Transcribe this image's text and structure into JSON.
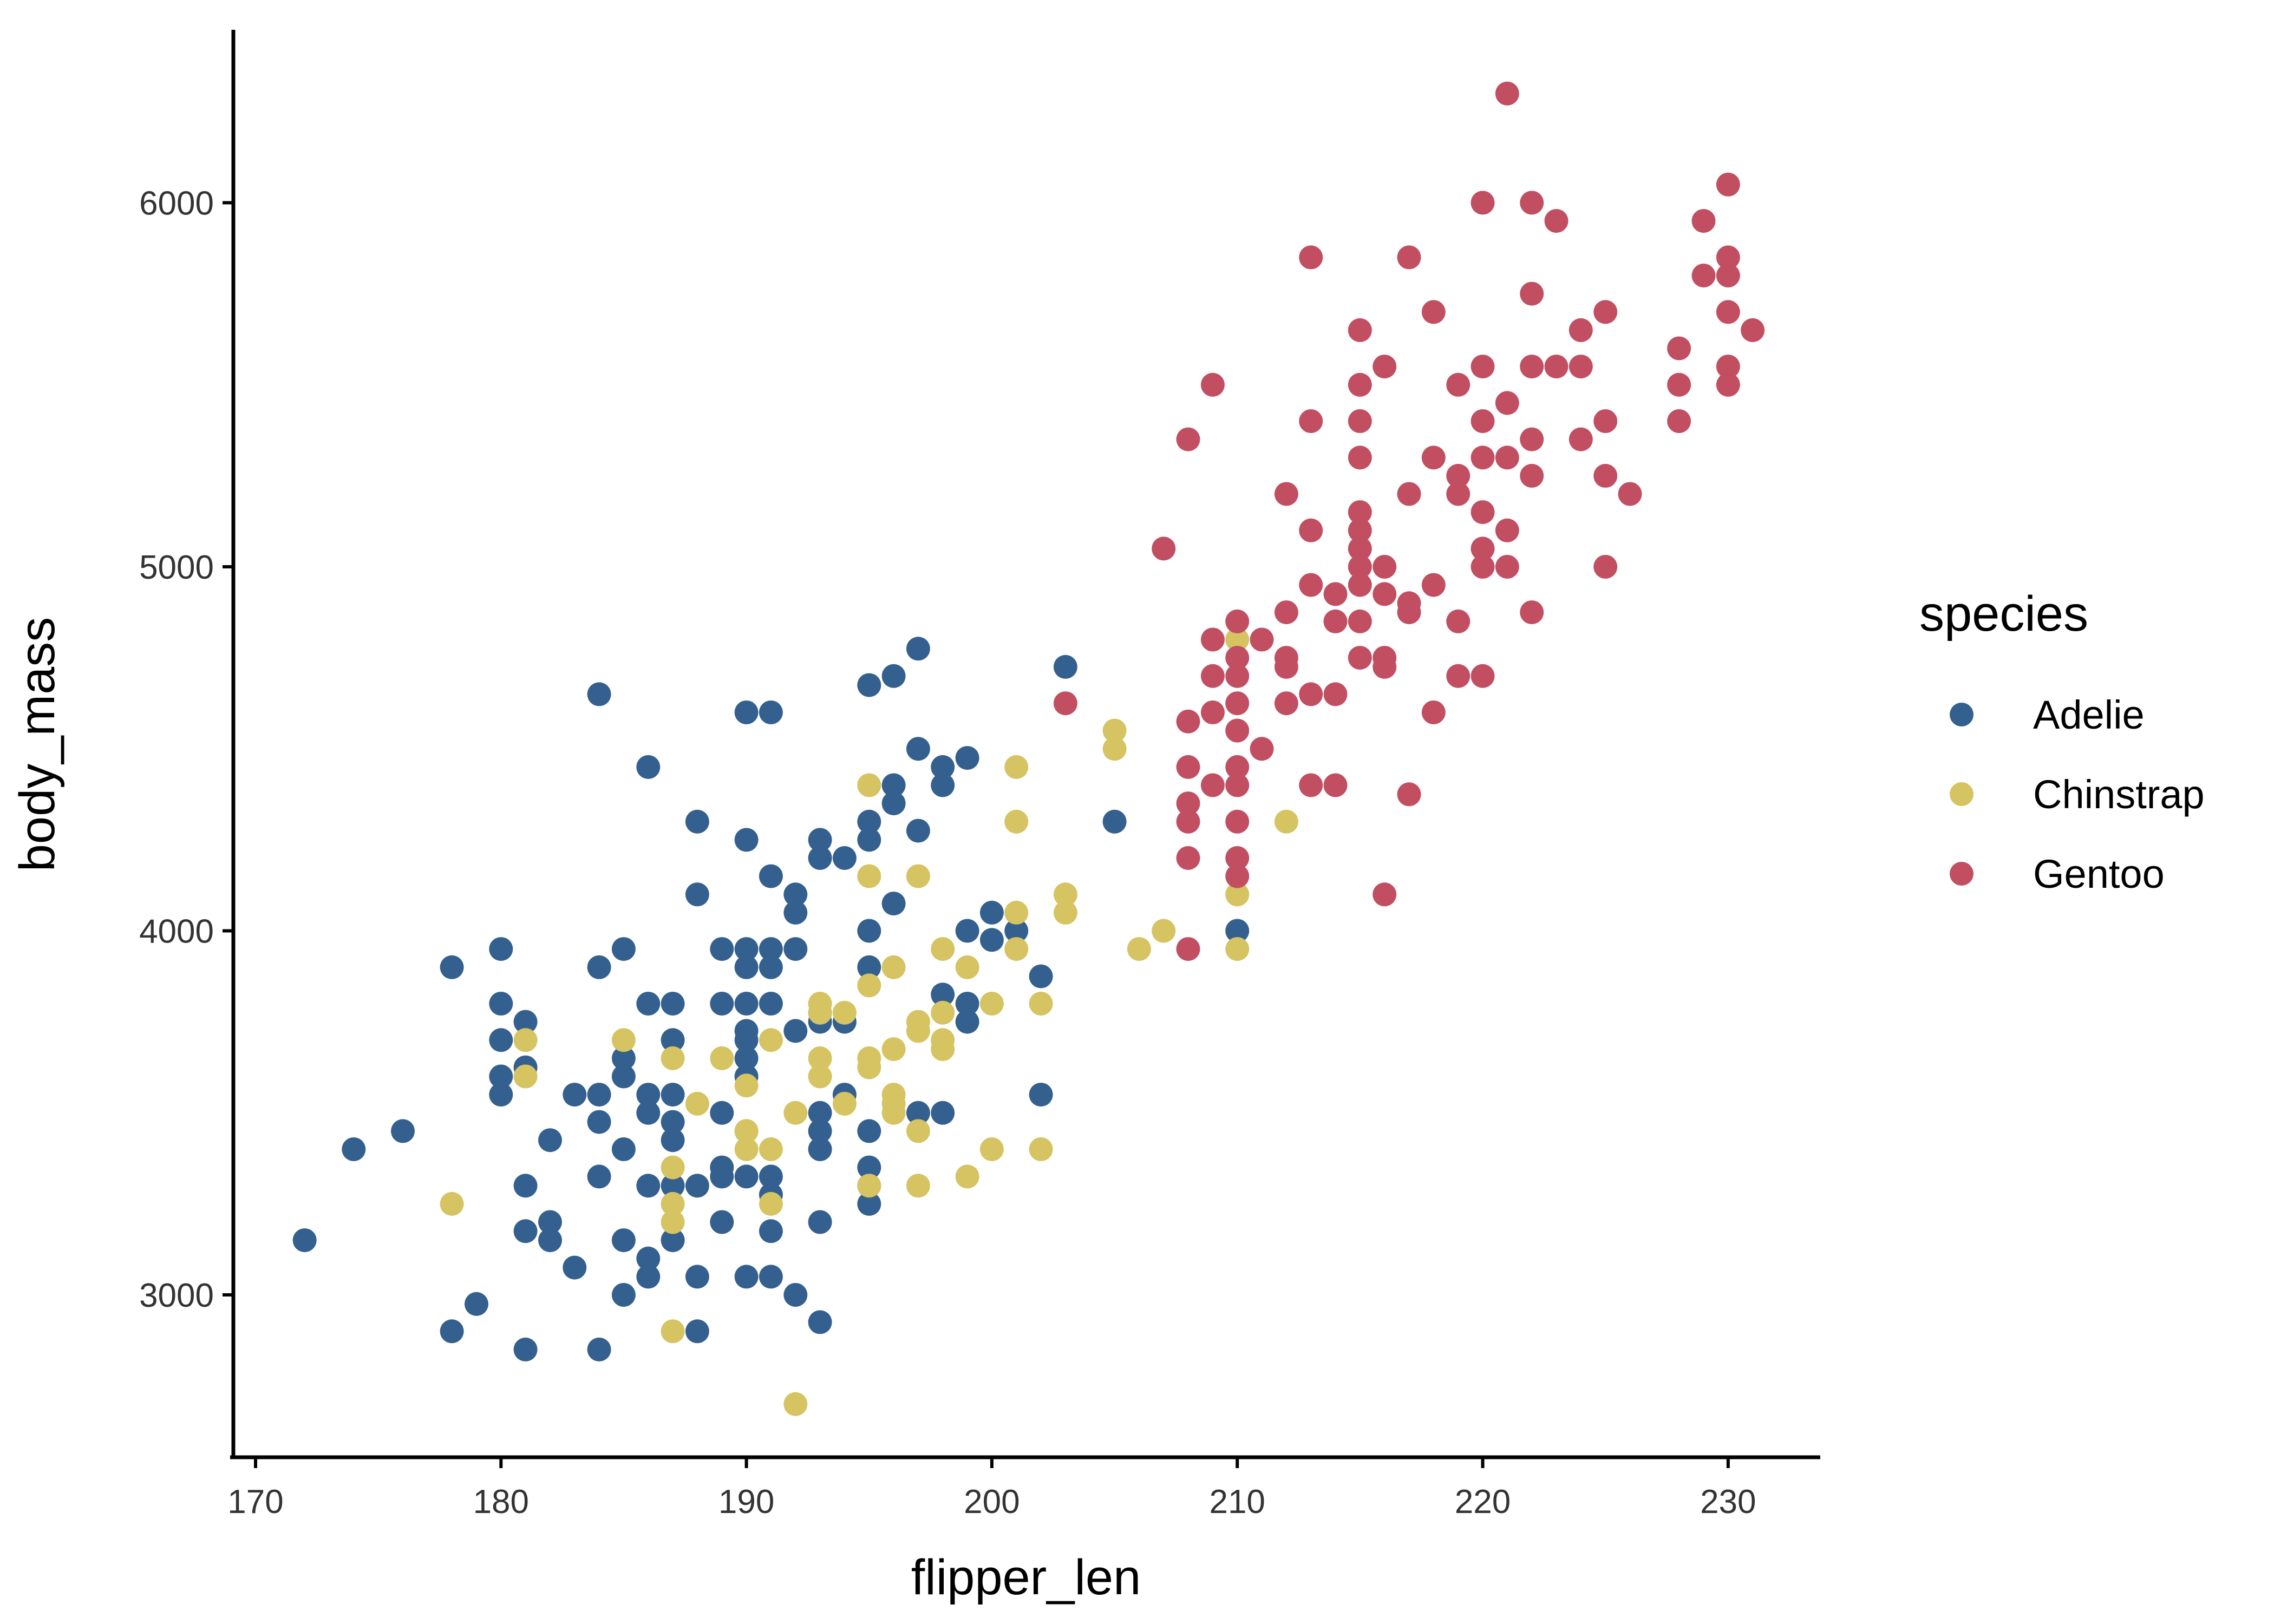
{
  "chart_data": {
    "type": "scatter",
    "xlabel": "flipper_len",
    "ylabel": "body_mass",
    "xlim": [
      169,
      234
    ],
    "ylim": [
      2530,
      6480
    ],
    "x_ticks": [
      170,
      180,
      190,
      200,
      210,
      220,
      230
    ],
    "y_ticks": [
      3000,
      4000,
      5000,
      6000
    ],
    "grid": false,
    "legend": {
      "title": "species",
      "position": "right"
    },
    "series": [
      {
        "name": "Adelie",
        "color": "#34608f",
        "points": [
          [
            172,
            3150
          ],
          [
            174,
            3400
          ],
          [
            176,
            3450
          ],
          [
            178,
            3900
          ],
          [
            178,
            2900
          ],
          [
            179,
            2975
          ],
          [
            180,
            3950
          ],
          [
            180,
            3800
          ],
          [
            180,
            3700
          ],
          [
            180,
            3600
          ],
          [
            180,
            3550
          ],
          [
            181,
            3750
          ],
          [
            181,
            3625
          ],
          [
            181,
            3300
          ],
          [
            181,
            3175
          ],
          [
            181,
            2850
          ],
          [
            182,
            3425
          ],
          [
            182,
            3200
          ],
          [
            182,
            3150
          ],
          [
            183,
            3550
          ],
          [
            183,
            3075
          ],
          [
            184,
            4650
          ],
          [
            184,
            3900
          ],
          [
            184,
            3550
          ],
          [
            184,
            3475
          ],
          [
            184,
            3325
          ],
          [
            184,
            2850
          ],
          [
            185,
            3950
          ],
          [
            185,
            3650
          ],
          [
            185,
            3600
          ],
          [
            185,
            3400
          ],
          [
            185,
            3150
          ],
          [
            185,
            3000
          ],
          [
            186,
            4450
          ],
          [
            186,
            3800
          ],
          [
            186,
            3550
          ],
          [
            186,
            3500
          ],
          [
            186,
            3300
          ],
          [
            186,
            3100
          ],
          [
            186,
            3050
          ],
          [
            187,
            3800
          ],
          [
            187,
            3700
          ],
          [
            187,
            3550
          ],
          [
            187,
            3475
          ],
          [
            187,
            3425
          ],
          [
            187,
            3300
          ],
          [
            187,
            3150
          ],
          [
            188,
            4300
          ],
          [
            188,
            4100
          ],
          [
            188,
            3300
          ],
          [
            188,
            3050
          ],
          [
            188,
            2900
          ],
          [
            189,
            3950
          ],
          [
            189,
            3800
          ],
          [
            189,
            3500
          ],
          [
            189,
            3350
          ],
          [
            189,
            3325
          ],
          [
            189,
            3200
          ],
          [
            190,
            4600
          ],
          [
            190,
            4250
          ],
          [
            190,
            3950
          ],
          [
            190,
            3900
          ],
          [
            190,
            3800
          ],
          [
            190,
            3725
          ],
          [
            190,
            3700
          ],
          [
            190,
            3650
          ],
          [
            190,
            3600
          ],
          [
            190,
            3450
          ],
          [
            190,
            3325
          ],
          [
            190,
            3050
          ],
          [
            191,
            4600
          ],
          [
            191,
            4150
          ],
          [
            191,
            3950
          ],
          [
            191,
            3900
          ],
          [
            191,
            3800
          ],
          [
            191,
            3325
          ],
          [
            191,
            3275
          ],
          [
            191,
            3175
          ],
          [
            191,
            3050
          ],
          [
            192,
            4100
          ],
          [
            192,
            4050
          ],
          [
            192,
            3950
          ],
          [
            192,
            3725
          ],
          [
            192,
            3000
          ],
          [
            193,
            4250
          ],
          [
            193,
            4200
          ],
          [
            193,
            3775
          ],
          [
            193,
            3750
          ],
          [
            193,
            3500
          ],
          [
            193,
            3450
          ],
          [
            193,
            3400
          ],
          [
            193,
            3200
          ],
          [
            193,
            2925
          ],
          [
            194,
            4200
          ],
          [
            194,
            3750
          ],
          [
            194,
            3550
          ],
          [
            195,
            4675
          ],
          [
            195,
            4300
          ],
          [
            195,
            4250
          ],
          [
            195,
            4000
          ],
          [
            195,
            3900
          ],
          [
            195,
            3450
          ],
          [
            195,
            3350
          ],
          [
            195,
            3300
          ],
          [
            195,
            3250
          ],
          [
            196,
            4700
          ],
          [
            196,
            4400
          ],
          [
            196,
            4350
          ],
          [
            196,
            4075
          ],
          [
            197,
            4775
          ],
          [
            197,
            4500
          ],
          [
            197,
            4275
          ],
          [
            197,
            3500
          ],
          [
            198,
            4450
          ],
          [
            198,
            4400
          ],
          [
            198,
            3825
          ],
          [
            198,
            3500
          ],
          [
            199,
            4475
          ],
          [
            199,
            4000
          ],
          [
            199,
            3800
          ],
          [
            199,
            3750
          ],
          [
            200,
            4050
          ],
          [
            200,
            3975
          ],
          [
            201,
            4000
          ],
          [
            202,
            3875
          ],
          [
            202,
            3550
          ],
          [
            203,
            4725
          ],
          [
            205,
            4300
          ],
          [
            210,
            4000
          ]
        ]
      },
      {
        "name": "Chinstrap",
        "color": "#d6c362",
        "points": [
          [
            178,
            3250
          ],
          [
            181,
            3700
          ],
          [
            181,
            3600
          ],
          [
            185,
            3700
          ],
          [
            187,
            3650
          ],
          [
            187,
            3350
          ],
          [
            187,
            3250
          ],
          [
            187,
            3200
          ],
          [
            187,
            2900
          ],
          [
            188,
            3525
          ],
          [
            189,
            3650
          ],
          [
            190,
            3575
          ],
          [
            190,
            3450
          ],
          [
            190,
            3400
          ],
          [
            191,
            3700
          ],
          [
            191,
            3400
          ],
          [
            191,
            3250
          ],
          [
            192,
            3500
          ],
          [
            192,
            2700
          ],
          [
            193,
            3800
          ],
          [
            193,
            3775
          ],
          [
            193,
            3650
          ],
          [
            193,
            3600
          ],
          [
            194,
            3775
          ],
          [
            194,
            3525
          ],
          [
            195,
            4400
          ],
          [
            195,
            4150
          ],
          [
            195,
            3850
          ],
          [
            195,
            3650
          ],
          [
            195,
            3625
          ],
          [
            195,
            3300
          ],
          [
            196,
            3900
          ],
          [
            196,
            3675
          ],
          [
            196,
            3550
          ],
          [
            196,
            3525
          ],
          [
            196,
            3500
          ],
          [
            197,
            4150
          ],
          [
            197,
            3750
          ],
          [
            197,
            3725
          ],
          [
            197,
            3450
          ],
          [
            197,
            3300
          ],
          [
            198,
            3950
          ],
          [
            198,
            3775
          ],
          [
            198,
            3700
          ],
          [
            198,
            3675
          ],
          [
            199,
            3900
          ],
          [
            199,
            3325
          ],
          [
            200,
            3800
          ],
          [
            200,
            3400
          ],
          [
            201,
            4450
          ],
          [
            201,
            4300
          ],
          [
            201,
            4050
          ],
          [
            201,
            3950
          ],
          [
            202,
            3800
          ],
          [
            202,
            3400
          ],
          [
            203,
            4100
          ],
          [
            203,
            4050
          ],
          [
            205,
            4550
          ],
          [
            205,
            4500
          ],
          [
            206,
            3950
          ],
          [
            207,
            4000
          ],
          [
            210,
            4800
          ],
          [
            210,
            4100
          ],
          [
            210,
            3950
          ],
          [
            212,
            4300
          ]
        ]
      },
      {
        "name": "Gentoo",
        "color": "#c24e62",
        "points": [
          [
            203,
            4625
          ],
          [
            207,
            5050
          ],
          [
            208,
            5350
          ],
          [
            208,
            4575
          ],
          [
            208,
            4450
          ],
          [
            208,
            4350
          ],
          [
            208,
            4300
          ],
          [
            208,
            4200
          ],
          [
            208,
            3950
          ],
          [
            209,
            5500
          ],
          [
            209,
            4800
          ],
          [
            209,
            4700
          ],
          [
            209,
            4600
          ],
          [
            209,
            4400
          ],
          [
            210,
            4850
          ],
          [
            210,
            4750
          ],
          [
            210,
            4700
          ],
          [
            210,
            4625
          ],
          [
            210,
            4550
          ],
          [
            210,
            4450
          ],
          [
            210,
            4400
          ],
          [
            210,
            4300
          ],
          [
            210,
            4200
          ],
          [
            210,
            4150
          ],
          [
            211,
            4800
          ],
          [
            211,
            4500
          ],
          [
            212,
            5200
          ],
          [
            212,
            4875
          ],
          [
            212,
            4750
          ],
          [
            212,
            4725
          ],
          [
            212,
            4625
          ],
          [
            213,
            5850
          ],
          [
            213,
            5400
          ],
          [
            213,
            5100
          ],
          [
            213,
            4950
          ],
          [
            213,
            4650
          ],
          [
            213,
            4400
          ],
          [
            214,
            4925
          ],
          [
            214,
            4850
          ],
          [
            214,
            4650
          ],
          [
            214,
            4400
          ],
          [
            215,
            5650
          ],
          [
            215,
            5500
          ],
          [
            215,
            5400
          ],
          [
            215,
            5300
          ],
          [
            215,
            5150
          ],
          [
            215,
            5100
          ],
          [
            215,
            5050
          ],
          [
            215,
            5000
          ],
          [
            215,
            4950
          ],
          [
            215,
            4850
          ],
          [
            215,
            4750
          ],
          [
            216,
            5550
          ],
          [
            216,
            5000
          ],
          [
            216,
            4925
          ],
          [
            216,
            4750
          ],
          [
            216,
            4725
          ],
          [
            216,
            4100
          ],
          [
            217,
            5850
          ],
          [
            217,
            5200
          ],
          [
            217,
            4900
          ],
          [
            217,
            4875
          ],
          [
            217,
            4375
          ],
          [
            218,
            5700
          ],
          [
            218,
            5300
          ],
          [
            218,
            4950
          ],
          [
            218,
            4600
          ],
          [
            219,
            5500
          ],
          [
            219,
            5250
          ],
          [
            219,
            5200
          ],
          [
            219,
            4850
          ],
          [
            219,
            4700
          ],
          [
            220,
            6000
          ],
          [
            220,
            5550
          ],
          [
            220,
            5400
          ],
          [
            220,
            5300
          ],
          [
            220,
            5150
          ],
          [
            220,
            5050
          ],
          [
            220,
            5000
          ],
          [
            220,
            4700
          ],
          [
            221,
            6300
          ],
          [
            221,
            5450
          ],
          [
            221,
            5300
          ],
          [
            221,
            5100
          ],
          [
            221,
            5000
          ],
          [
            222,
            6000
          ],
          [
            222,
            5750
          ],
          [
            222,
            5550
          ],
          [
            222,
            5350
          ],
          [
            222,
            5250
          ],
          [
            222,
            4875
          ],
          [
            223,
            5950
          ],
          [
            223,
            5550
          ],
          [
            224,
            5650
          ],
          [
            224,
            5550
          ],
          [
            224,
            5350
          ],
          [
            225,
            5700
          ],
          [
            225,
            5400
          ],
          [
            225,
            5250
          ],
          [
            225,
            5000
          ],
          [
            226,
            5200
          ],
          [
            228,
            5600
          ],
          [
            228,
            5500
          ],
          [
            228,
            5400
          ],
          [
            229,
            5950
          ],
          [
            229,
            5800
          ],
          [
            230,
            6050
          ],
          [
            230,
            5850
          ],
          [
            230,
            5800
          ],
          [
            230,
            5700
          ],
          [
            230,
            5550
          ],
          [
            230,
            5500
          ],
          [
            231,
            5650
          ]
        ]
      }
    ]
  }
}
